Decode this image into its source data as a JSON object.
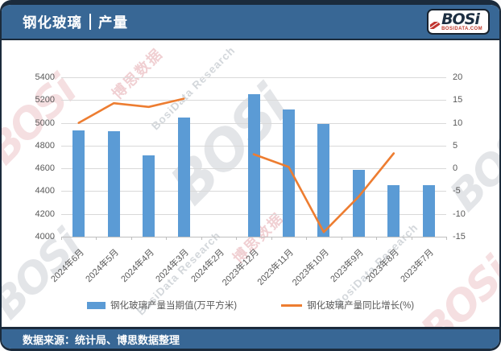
{
  "header": {
    "title_main": "钢化玻璃",
    "title_sub": "产量"
  },
  "logo": {
    "brand": "BOSi",
    "domain": "BOSIDATA.COM"
  },
  "footer": {
    "source": "数据来源：统计局、博思数据整理"
  },
  "watermarks": {
    "brand": "BOSi",
    "cn": "博思数据",
    "en": "BosiData Research"
  },
  "colors": {
    "header_bg": "#386795",
    "frame": "#1b2b3c",
    "bar": "#5B9BD5",
    "line": "#ED7D31",
    "grid": "#D9D9D9",
    "axis_text": "#595959"
  },
  "chart_data": {
    "type": "bar",
    "subtype": "combo-bar-line-dual-axis",
    "title": "钢化玻璃 | 产量",
    "categories": [
      "2024年6月",
      "2024年5月",
      "2024年4月",
      "2024年3月",
      "2024年2月",
      "2023年12月",
      "2023年11月",
      "2023年10月",
      "2023年9月",
      "2023年8月",
      "2023年7月"
    ],
    "series": [
      {
        "name": "钢化玻璃产量当期值(万平方米)",
        "type": "bar",
        "axis": "left",
        "color": "#5B9BD5",
        "values": [
          4935,
          4925,
          4715,
          5050,
          null,
          5250,
          5115,
          4990,
          4590,
          4455,
          4450
        ]
      },
      {
        "name": "钢化玻璃产量同比增长(%)",
        "type": "line",
        "axis": "right",
        "color": "#ED7D31",
        "values": [
          10.0,
          14.3,
          13.5,
          15.3,
          null,
          3.1,
          0.3,
          -14.0,
          -6.2,
          3.3,
          null
        ]
      }
    ],
    "left_axis": {
      "min": 4000,
      "max": 5400,
      "step": 200
    },
    "right_axis": {
      "min": -15,
      "max": 20,
      "step": 5
    },
    "grid": "horizontal",
    "legend_position": "bottom"
  }
}
